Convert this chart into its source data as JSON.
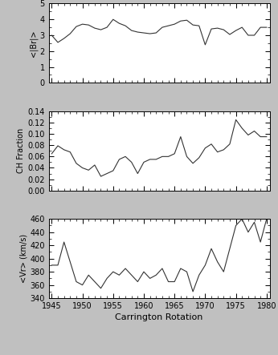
{
  "cr": [
    1945,
    1946,
    1947,
    1948,
    1949,
    1950,
    1951,
    1952,
    1953,
    1954,
    1955,
    1956,
    1957,
    1958,
    1959,
    1960,
    1961,
    1962,
    1963,
    1964,
    1965,
    1966,
    1967,
    1968,
    1969,
    1970,
    1971,
    1972,
    1973,
    1974,
    1975,
    1976,
    1977,
    1978,
    1979,
    1980
  ],
  "Br": [
    3.0,
    2.55,
    2.8,
    3.1,
    3.55,
    3.7,
    3.65,
    3.45,
    3.35,
    3.5,
    4.0,
    3.75,
    3.6,
    3.3,
    3.2,
    3.15,
    3.1,
    3.15,
    3.5,
    3.6,
    3.7,
    3.9,
    3.95,
    3.65,
    3.6,
    2.4,
    3.4,
    3.45,
    3.35,
    3.05,
    3.3,
    3.5,
    3.0,
    3.0,
    3.5,
    3.5
  ],
  "CH": [
    0.065,
    0.079,
    0.072,
    0.068,
    0.048,
    0.04,
    0.036,
    0.045,
    0.025,
    0.03,
    0.035,
    0.055,
    0.06,
    0.05,
    0.03,
    0.05,
    0.055,
    0.055,
    0.06,
    0.06,
    0.065,
    0.095,
    0.06,
    0.048,
    0.058,
    0.075,
    0.082,
    0.068,
    0.072,
    0.082,
    0.125,
    0.11,
    0.098,
    0.105,
    0.095,
    0.095
  ],
  "Vr": [
    390,
    390,
    425,
    395,
    365,
    360,
    375,
    365,
    355,
    370,
    380,
    375,
    385,
    375,
    365,
    380,
    370,
    375,
    385,
    365,
    365,
    385,
    380,
    350,
    375,
    390,
    415,
    395,
    380,
    415,
    450,
    460,
    440,
    455,
    425,
    460
  ],
  "Br_ylim": [
    0,
    5
  ],
  "Br_yticks": [
    0,
    1,
    2,
    3,
    4,
    5
  ],
  "CH_ylim": [
    0.0,
    0.14
  ],
  "CH_yticks": [
    0.0,
    0.02,
    0.04,
    0.06,
    0.08,
    0.1,
    0.12,
    0.14
  ],
  "Vr_ylim": [
    340,
    460
  ],
  "Vr_yticks": [
    340,
    360,
    380,
    400,
    420,
    440,
    460
  ],
  "xlim": [
    1944.5,
    1980.5
  ],
  "xticks": [
    1945,
    1950,
    1955,
    1960,
    1965,
    1970,
    1975,
    1980
  ],
  "xlabel": "Carrington Rotation",
  "Br_ylabel": "<|Br|>",
  "CH_ylabel": "CH Fraction",
  "Vr_ylabel": "<Vr> (km/s)",
  "line_color": "#333333",
  "bg_color": "#ffffff",
  "fig_color": "#c0c0c0"
}
